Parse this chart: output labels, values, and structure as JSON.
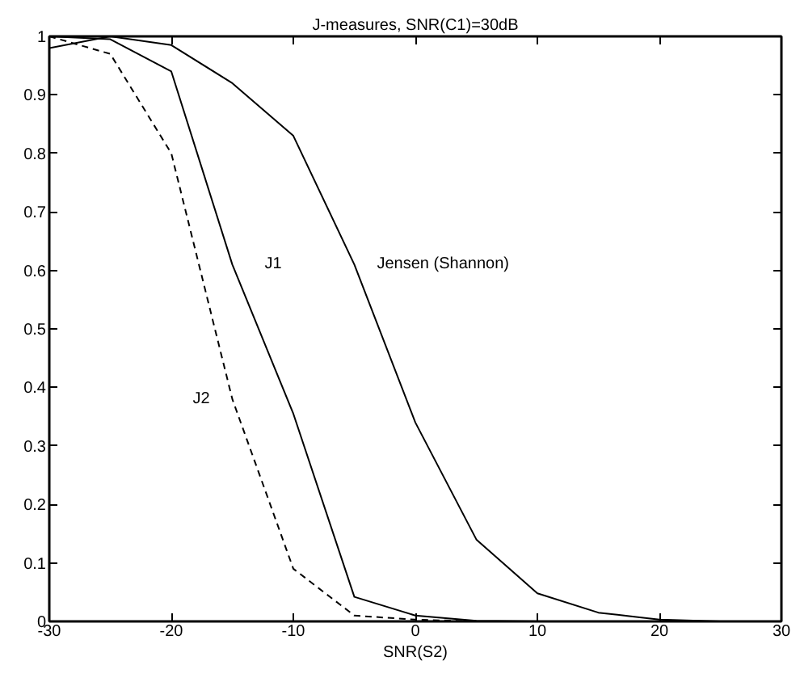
{
  "chart_data": {
    "type": "line",
    "title": "J-measures, SNR(C1)=30dB",
    "xlabel": "SNR(S2)",
    "x": [
      -30,
      -25,
      -20,
      -15,
      -10,
      -5,
      0,
      5,
      10,
      15,
      20,
      25,
      30
    ],
    "xlim": [
      -30,
      30
    ],
    "xticks": [
      -30,
      -20,
      -10,
      0,
      10,
      20,
      30
    ],
    "ylim": [
      0,
      1
    ],
    "yticks": [
      0,
      0.1,
      0.2,
      0.3,
      0.4,
      0.5,
      0.6,
      0.7,
      0.8,
      0.9,
      1
    ],
    "grid": false,
    "marker": "none",
    "series": [
      {
        "name": "J1",
        "color": "#000000",
        "line_style": "solid",
        "values": [
          1.0,
          0.995,
          0.94,
          0.61,
          0.355,
          0.042,
          0.01,
          0.001,
          0,
          0,
          0,
          0,
          0
        ]
      },
      {
        "name": "Jensen (Shannon)",
        "color": "#000000",
        "line_style": "solid",
        "values": [
          0.98,
          1.0,
          0.985,
          0.92,
          0.83,
          0.61,
          0.34,
          0.14,
          0.048,
          0.015,
          0.003,
          0,
          0
        ]
      },
      {
        "name": "J2",
        "color": "#000000",
        "line_style": "dashed",
        "values": [
          1.0,
          0.97,
          0.8,
          0.38,
          0.09,
          0.01,
          0.003,
          0,
          0,
          0,
          0,
          0,
          0
        ]
      }
    ]
  }
}
